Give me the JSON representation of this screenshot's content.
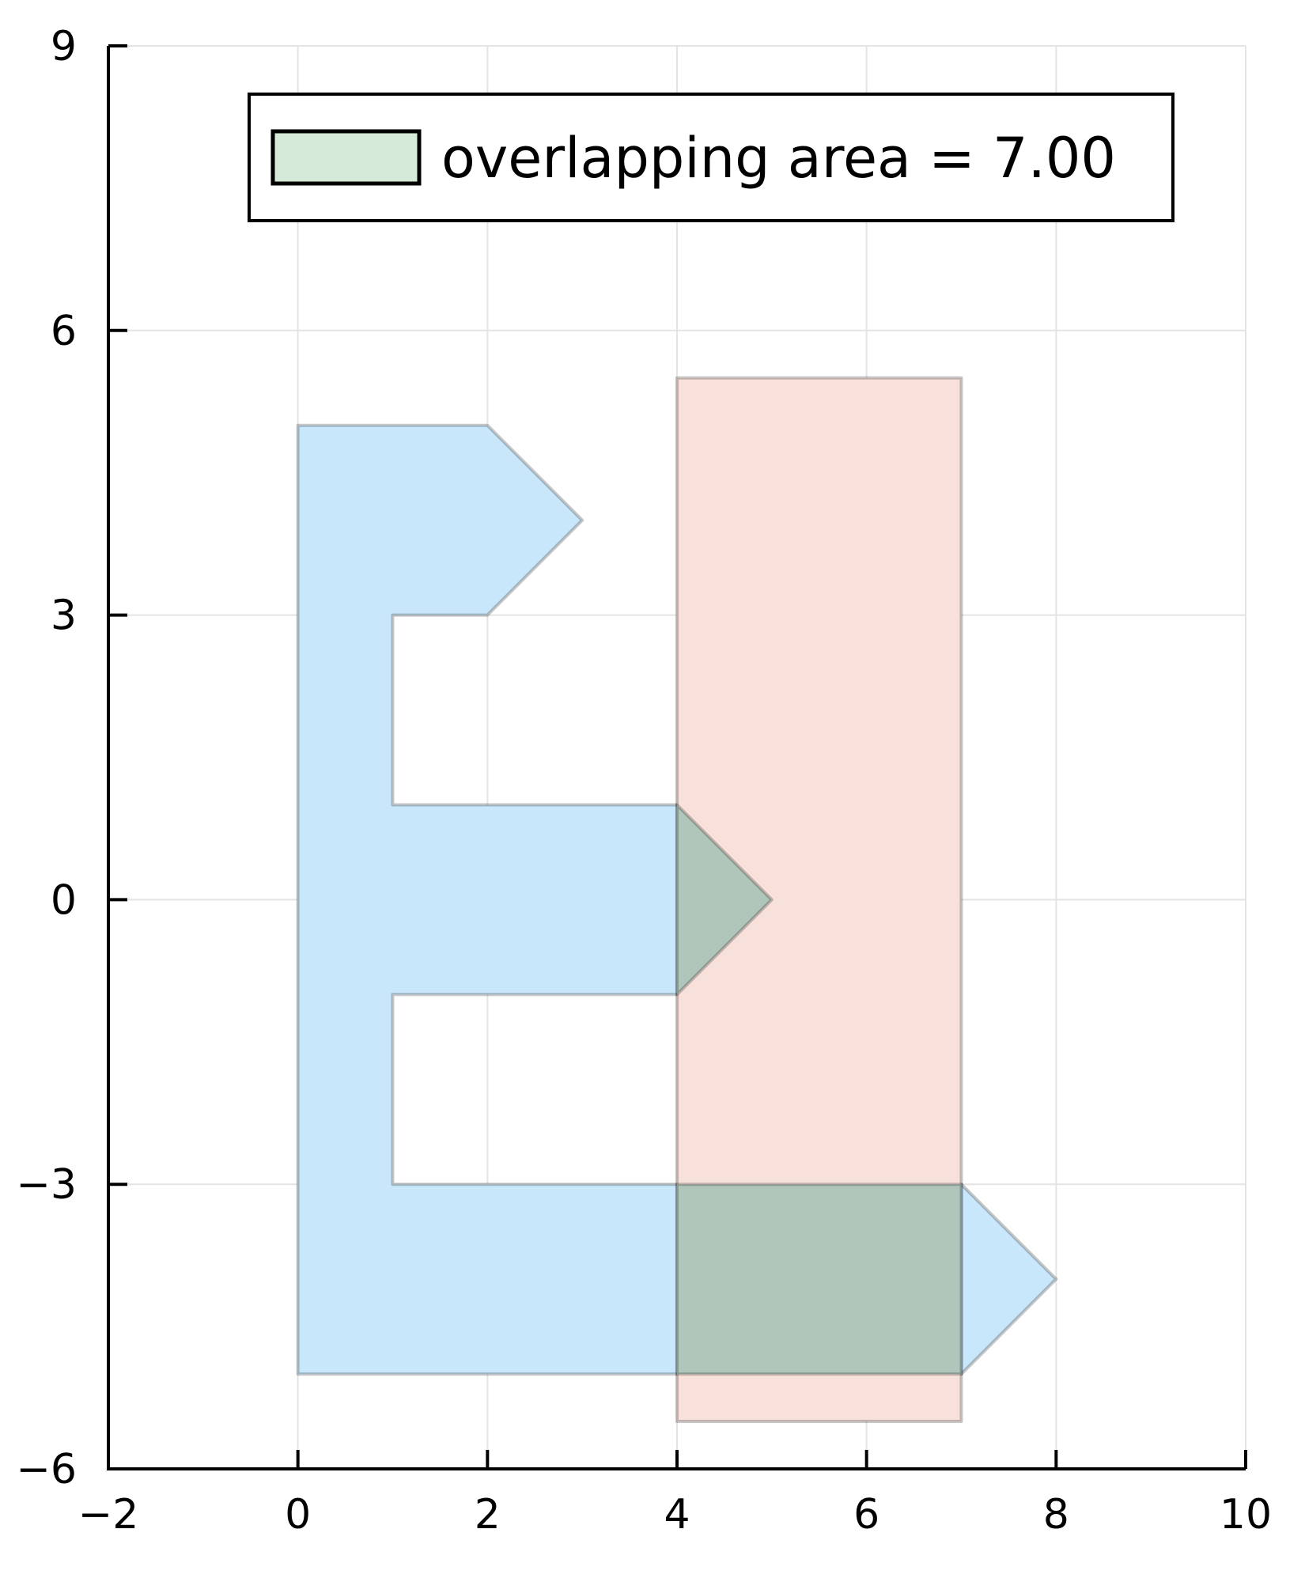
{
  "chart_data": {
    "type": "area",
    "xlim": [
      -2,
      10
    ],
    "ylim": [
      -6,
      9
    ],
    "xticks": [
      -2,
      0,
      2,
      4,
      6,
      8,
      10
    ],
    "yticks": [
      -6,
      -3,
      0,
      3,
      6,
      9
    ],
    "xtick_labels": [
      "−2",
      "0",
      "2",
      "4",
      "6",
      "8",
      "10"
    ],
    "ytick_labels": [
      "−6",
      "−3",
      "0",
      "3",
      "6",
      "9"
    ],
    "grid": true,
    "legend_position": "top-right",
    "legend": [
      {
        "label": "overlapping area = 7.00",
        "color": "#d5ead9"
      }
    ],
    "shapes": [
      {
        "role": "polygon-a",
        "color": "#c9e7fa",
        "points": [
          [
            0,
            5
          ],
          [
            2,
            5
          ],
          [
            3,
            4
          ],
          [
            2,
            3
          ],
          [
            1,
            3
          ],
          [
            1,
            1
          ],
          [
            4,
            1
          ],
          [
            5,
            0
          ],
          [
            4,
            -1
          ],
          [
            1,
            -1
          ],
          [
            1,
            -3
          ],
          [
            7,
            -3
          ],
          [
            8,
            -4
          ],
          [
            7,
            -5
          ],
          [
            0,
            -5
          ]
        ]
      },
      {
        "role": "polygon-b",
        "color": "#f7e1da",
        "points": [
          [
            4,
            5.5
          ],
          [
            7,
            5.5
          ],
          [
            7,
            -5.5
          ],
          [
            4,
            -5.5
          ]
        ]
      },
      {
        "role": "intersection",
        "color": "#b1c6bb",
        "points": [
          [
            4,
            1
          ],
          [
            5,
            0
          ],
          [
            4,
            -1
          ]
        ]
      },
      {
        "role": "intersection",
        "color": "#b1c6bb",
        "points": [
          [
            4,
            -3
          ],
          [
            7,
            -3
          ],
          [
            7,
            -5
          ],
          [
            4,
            -5
          ]
        ]
      }
    ]
  }
}
